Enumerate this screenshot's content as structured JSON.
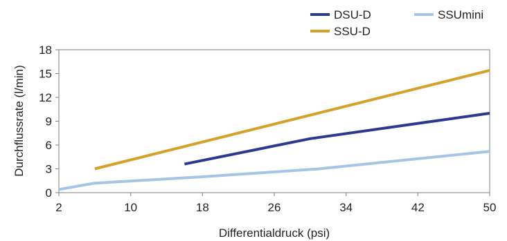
{
  "chart_data": {
    "type": "line",
    "xlabel": "Differentialdruck (psi)",
    "ylabel": "Durchflussrate (l/min)",
    "xlim": [
      2,
      50
    ],
    "ylim": [
      0,
      18
    ],
    "x_ticks": [
      "2",
      "10",
      "18",
      "26",
      "34",
      "42",
      "50"
    ],
    "y_ticks": [
      "0",
      "3",
      "6",
      "9",
      "12",
      "15",
      "18"
    ],
    "legend_position": "top-right",
    "series": [
      {
        "name": "DSU-D",
        "color": "#2b3990",
        "points": [
          [
            16,
            3.6
          ],
          [
            30,
            6.8
          ],
          [
            50,
            10.0
          ]
        ]
      },
      {
        "name": "SSU-D",
        "color": "#d4a12b",
        "points": [
          [
            6,
            3.0
          ],
          [
            50,
            15.4
          ]
        ]
      },
      {
        "name": "SSUmini",
        "color": "#a6c4e5",
        "points": [
          [
            2,
            0.4
          ],
          [
            6,
            1.2
          ],
          [
            18,
            2.0
          ],
          [
            31,
            3.0
          ],
          [
            50,
            5.2
          ]
        ]
      }
    ]
  }
}
